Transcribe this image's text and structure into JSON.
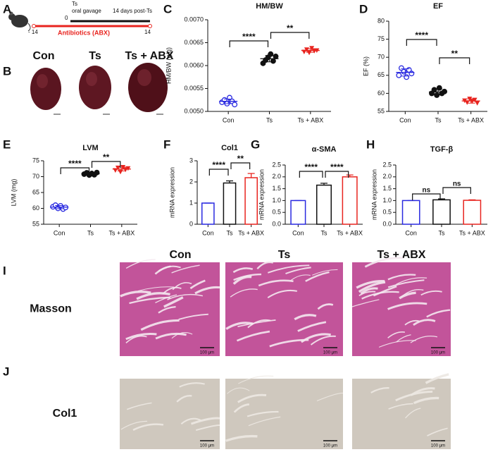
{
  "panel_labels": [
    "A",
    "B",
    "C",
    "D",
    "E",
    "F",
    "G",
    "H",
    "I",
    "J"
  ],
  "timeline": {
    "event": "Ts",
    "event_detail": "oral gavage",
    "start": "- 14",
    "zero": "0",
    "end": "14",
    "end_note": "14 days post-Ts",
    "treatment": "Antibiotics (ABX)"
  },
  "heart_groups": [
    "Con",
    "Ts",
    "Ts + ABX"
  ],
  "chart_data": [
    {
      "type": "dot",
      "title": "HM/BW",
      "y_label": "HM/BW (g/g)",
      "categories": [
        "Con",
        "Ts",
        "Ts + ABX"
      ],
      "ylim": [
        0.005,
        0.007
      ],
      "yticks": [
        {
          "value": 0.005,
          "label": "0.0050"
        },
        {
          "value": 0.0055,
          "label": "0.0055"
        },
        {
          "value": 0.006,
          "label": "0.0060"
        },
        {
          "value": 0.0065,
          "label": "0.0065"
        },
        {
          "value": 0.007,
          "label": "0.0070"
        }
      ],
      "groups": [
        {
          "color": "#2a2ae0",
          "marker": "circle-open",
          "values": [
            0.0052,
            0.00525,
            0.00517,
            0.0053,
            0.00522,
            0.00515
          ],
          "mean": 0.00522,
          "sd": 5e-05
        },
        {
          "color": "#111111",
          "marker": "circle",
          "values": [
            0.00605,
            0.00612,
            0.00618,
            0.00625,
            0.0061,
            0.0062
          ],
          "mean": 0.00615,
          "sd": 7e-05
        },
        {
          "color": "#e8241f",
          "marker": "triangle-down",
          "values": [
            0.0063,
            0.00635,
            0.00628,
            0.00638,
            0.00632,
            0.00633
          ],
          "mean": 0.00633,
          "sd": 4e-05
        }
      ],
      "significance": [
        {
          "from": 0,
          "to": 1,
          "label": "****"
        },
        {
          "from": 1,
          "to": 2,
          "label": "**"
        }
      ]
    },
    {
      "type": "dot",
      "title": "EF",
      "y_label": "EF (%)",
      "categories": [
        "Con",
        "Ts",
        "Ts + ABX"
      ],
      "ylim": [
        55,
        80
      ],
      "yticks": [
        55,
        60,
        65,
        70,
        75,
        80
      ],
      "groups": [
        {
          "color": "#2a2ae0",
          "marker": "circle-open",
          "values": [
            65,
            67,
            66,
            64.5,
            66.5,
            65.5
          ],
          "mean": 65.8,
          "sd": 1
        },
        {
          "color": "#111111",
          "marker": "circle",
          "values": [
            60,
            61,
            59.5,
            61.5,
            60,
            60.5
          ],
          "mean": 60.4,
          "sd": 0.8
        },
        {
          "color": "#e8241f",
          "marker": "triangle-down",
          "values": [
            58,
            57.5,
            58.5,
            57.8,
            58.2,
            57.3
          ],
          "mean": 57.9,
          "sd": 0.6
        }
      ],
      "significance": [
        {
          "from": 0,
          "to": 1,
          "label": "****"
        },
        {
          "from": 1,
          "to": 2,
          "label": "**"
        }
      ]
    },
    {
      "type": "dot",
      "title": "LVM",
      "y_label": "LVM (mg)",
      "categories": [
        "Con",
        "Ts",
        "Ts + ABX"
      ],
      "ylim": [
        55,
        75
      ],
      "yticks": [
        55,
        60,
        65,
        70,
        75
      ],
      "groups": [
        {
          "color": "#2a2ae0",
          "marker": "circle-open",
          "values": [
            60.5,
            61,
            60,
            60.8,
            59.8,
            60.3
          ],
          "mean": 60.4,
          "sd": 0.5
        },
        {
          "color": "#111111",
          "marker": "circle",
          "values": [
            70.8,
            71.2,
            70.5,
            71,
            70.6,
            71.3
          ],
          "mean": 70.9,
          "sd": 0.4
        },
        {
          "color": "#e8241f",
          "marker": "triangle-down",
          "values": [
            72,
            72.8,
            71.5,
            73,
            72.2,
            72.6
          ],
          "mean": 72.4,
          "sd": 0.6
        }
      ],
      "significance": [
        {
          "from": 0,
          "to": 1,
          "label": "****"
        },
        {
          "from": 1,
          "to": 2,
          "label": "**"
        }
      ]
    },
    {
      "type": "bar",
      "title": "Col1",
      "y_label": "mRNA expression",
      "categories": [
        "Con",
        "Ts",
        "Ts + ABX"
      ],
      "ylim": [
        0,
        3
      ],
      "yticks": [
        0,
        1,
        2,
        3
      ],
      "values": [
        1,
        1.95,
        2.2
      ],
      "errors": [
        0,
        0.1,
        0.2
      ],
      "colors": [
        "#2a2ae0",
        "#111111",
        "#e8241f"
      ],
      "significance": [
        {
          "from": 0,
          "to": 1,
          "label": "****"
        },
        {
          "from": 1,
          "to": 2,
          "label": "**"
        }
      ]
    },
    {
      "type": "bar",
      "title": "α-SMA",
      "y_label": "mRNA expression",
      "categories": [
        "Con",
        "Ts",
        "Ts + ABX"
      ],
      "ylim": [
        0,
        2.5
      ],
      "yticks": [
        {
          "value": 0,
          "label": "0.0"
        },
        0.5,
        {
          "value": 1,
          "label": "1.0"
        },
        1.5,
        {
          "value": 2,
          "label": "2.0"
        },
        2.5
      ],
      "values": [
        1,
        1.65,
        2.0
      ],
      "errors": [
        0,
        0.08,
        0.08
      ],
      "colors": [
        "#2a2ae0",
        "#111111",
        "#e8241f"
      ],
      "significance": [
        {
          "from": 0,
          "to": 1,
          "label": "****"
        },
        {
          "from": 1,
          "to": 2,
          "label": "****"
        }
      ]
    },
    {
      "type": "bar",
      "title": "TGF-β",
      "y_label": "mRNA expression",
      "categories": [
        "Con",
        "Ts",
        "Ts + ABX"
      ],
      "ylim": [
        0,
        2.5
      ],
      "yticks": [
        {
          "value": 0,
          "label": "0.0"
        },
        0.5,
        {
          "value": 1,
          "label": "1.0"
        },
        1.5,
        {
          "value": 2,
          "label": "2.0"
        },
        2.5
      ],
      "values": [
        1,
        1.03,
        1.01
      ],
      "errors": [
        0,
        0.04,
        0.02
      ],
      "colors": [
        "#2a2ae0",
        "#111111",
        "#e8241f"
      ],
      "significance": [
        {
          "from": 0,
          "to": 1,
          "label": "ns"
        },
        {
          "from": 1,
          "to": 2,
          "label": "ns"
        }
      ]
    }
  ],
  "histology": {
    "groups": [
      "Con",
      "Ts",
      "Ts + ABX"
    ],
    "rows": [
      {
        "stain": "Masson",
        "scale_bars": [
          "100 μm",
          "100 μm",
          "100 μm"
        ]
      },
      {
        "stain": "Col1",
        "scale_bars": [
          "100 μm",
          "100 μm",
          "100 μm"
        ]
      }
    ]
  }
}
